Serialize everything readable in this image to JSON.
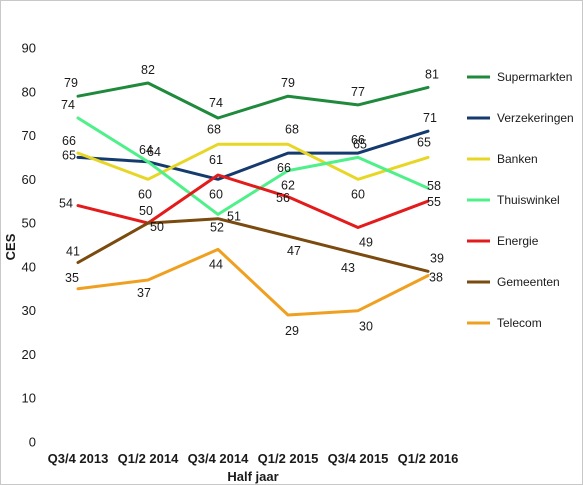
{
  "chart_data": {
    "type": "line",
    "xlabel": "Half jaar",
    "ylabel": "CES",
    "ylim": [
      0,
      90
    ],
    "yticks": [
      0,
      10,
      20,
      30,
      40,
      50,
      60,
      70,
      80,
      90
    ],
    "grid": false,
    "legend_position": "right",
    "categories": [
      "Q3/4 2013",
      "Q1/2 2014",
      "Q3/4 2014",
      "Q1/2 2015",
      "Q3/4 2015",
      "Q1/2 2016"
    ],
    "series": [
      {
        "name": "Supermarkten",
        "color": "#1f8a3c",
        "values": [
          79,
          82,
          74,
          79,
          77,
          81
        ]
      },
      {
        "name": "Verzekeringen",
        "color": "#143a6e",
        "values": [
          65,
          64,
          60,
          66,
          66,
          71
        ]
      },
      {
        "name": "Banken",
        "color": "#e8d625",
        "values": [
          66,
          60,
          68,
          68,
          60,
          65
        ]
      },
      {
        "name": "Thuiswinkel",
        "color": "#4ef08a",
        "values": [
          74,
          64,
          52,
          62,
          65,
          58
        ]
      },
      {
        "name": "Energie",
        "color": "#e31b1b",
        "values": [
          54,
          50,
          61,
          56,
          49,
          55
        ]
      },
      {
        "name": "Gemeenten",
        "color": "#7a4a0e",
        "values": [
          41,
          50,
          51,
          47,
          43,
          39
        ]
      },
      {
        "name": "Telecom",
        "color": "#f0a020",
        "values": [
          35,
          37,
          44,
          29,
          30,
          38
        ]
      }
    ]
  }
}
